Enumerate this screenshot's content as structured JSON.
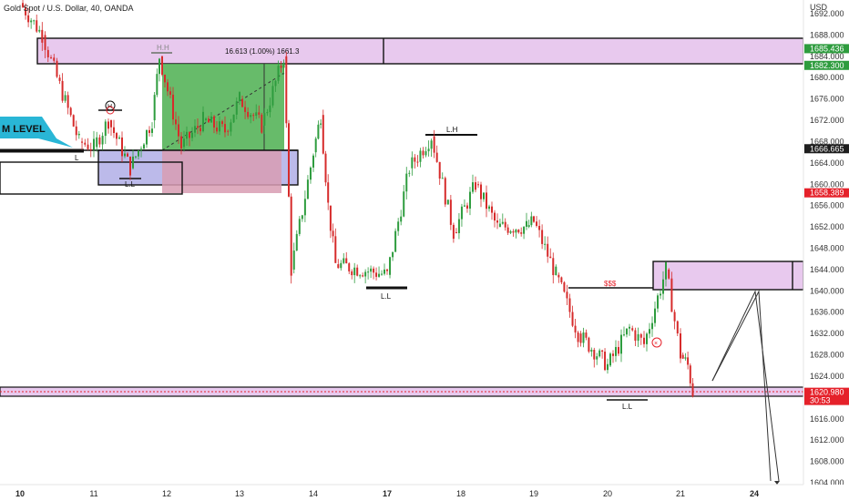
{
  "header": {
    "symbol_title": "Gold Spot / U.S. Dollar, 40, OANDA",
    "currency": "USD"
  },
  "price_axis": {
    "labels": [
      "1692.000",
      "1688.000",
      "1684.000",
      "1680.000",
      "1676.000",
      "1672.000",
      "1668.000",
      "1664.000",
      "1660.000",
      "1656.000",
      "1652.000",
      "1648.000",
      "1644.000",
      "1640.000",
      "1636.000",
      "1632.000",
      "1628.000",
      "1624.000",
      "1620.000",
      "1616.000",
      "1612.000",
      "1608.000",
      "1604.000"
    ],
    "badges": [
      {
        "label": "1685.436",
        "color": "#2e9c3e"
      },
      {
        "label": "1682.300",
        "color": "#2e9c3e"
      },
      {
        "label": "1666.665",
        "color": "#1e1e1e"
      },
      {
        "label": "1658.389",
        "color": "#e5212a"
      },
      {
        "label": "1620.980",
        "sub": "30:53",
        "color": "#e5212a"
      }
    ]
  },
  "time_axis": {
    "labels": [
      "10",
      "11",
      "12",
      "13",
      "14",
      "17",
      "18",
      "19",
      "20",
      "21",
      "24"
    ],
    "bold": [
      "10",
      "17",
      "24"
    ]
  },
  "annotations": {
    "level_label": "M LEVEL",
    "measure_label": "16.613 (1.00%) 1661.3",
    "hh": "H.H",
    "lh": "L.H",
    "ll": "L.L",
    "l": "L",
    "sss": "$$$",
    "h_circle": "H"
  },
  "colors": {
    "bull": "#26a69a",
    "bear": "#ef5350",
    "candle_up": "#2e9c3e",
    "candle_down": "#d62b2b",
    "zone_purple": "#e6c8ee",
    "zone_blue": "#b9b8e8",
    "profit_green": "#4caf50",
    "loss_pink": "#d69bb0",
    "level_callout": "#29b6d6"
  },
  "chart_data": {
    "type": "candlestick",
    "title": "Gold Spot / U.S. Dollar, 40, OANDA",
    "ylim": [
      1603,
      1694
    ],
    "x": [
      "10",
      "11",
      "12",
      "13",
      "14",
      "17",
      "18",
      "19",
      "20",
      "21",
      "24"
    ],
    "close_path": [
      {
        "x": "10",
        "y": 1694
      },
      {
        "x": "10.3",
        "y": 1688
      },
      {
        "x": "10.5",
        "y": 1680
      },
      {
        "x": "10.8",
        "y": 1668
      },
      {
        "x": "11",
        "y": 1667
      },
      {
        "x": "11.2",
        "y": 1672
      },
      {
        "x": "11.5",
        "y": 1663
      },
      {
        "x": "11.8",
        "y": 1672
      },
      {
        "x": "11.9",
        "y": 1684
      },
      {
        "x": "12.2",
        "y": 1667
      },
      {
        "x": "12.5",
        "y": 1672
      },
      {
        "x": "12.8",
        "y": 1670
      },
      {
        "x": "13",
        "y": 1676
      },
      {
        "x": "13.3",
        "y": 1671
      },
      {
        "x": "13.6",
        "y": 1684
      },
      {
        "x": "13.7",
        "y": 1644
      },
      {
        "x": "14",
        "y": 1666
      },
      {
        "x": "14.3",
        "y": 1673
      },
      {
        "x": "14.6",
        "y": 1656
      },
      {
        "x": "14.9",
        "y": 1645
      },
      {
        "x": "17",
        "y": 1643
      },
      {
        "x": "17.3",
        "y": 1663
      },
      {
        "x": "17.6",
        "y": 1669
      },
      {
        "x": "17.9",
        "y": 1651
      },
      {
        "x": "18.2",
        "y": 1660
      },
      {
        "x": "18.5",
        "y": 1652
      },
      {
        "x": "18.9",
        "y": 1652
      },
      {
        "x": "19",
        "y": 1653
      },
      {
        "x": "19.3",
        "y": 1643
      },
      {
        "x": "19.6",
        "y": 1632
      },
      {
        "x": "20",
        "y": 1626
      },
      {
        "x": "20.3",
        "y": 1633
      },
      {
        "x": "20.5",
        "y": 1630
      },
      {
        "x": "20.8",
        "y": 1644
      },
      {
        "x": "21",
        "y": 1628
      },
      {
        "x": "21.3",
        "y": 1626
      },
      {
        "x": "21.5",
        "y": 1621
      }
    ],
    "last_price": 1620.98
  }
}
